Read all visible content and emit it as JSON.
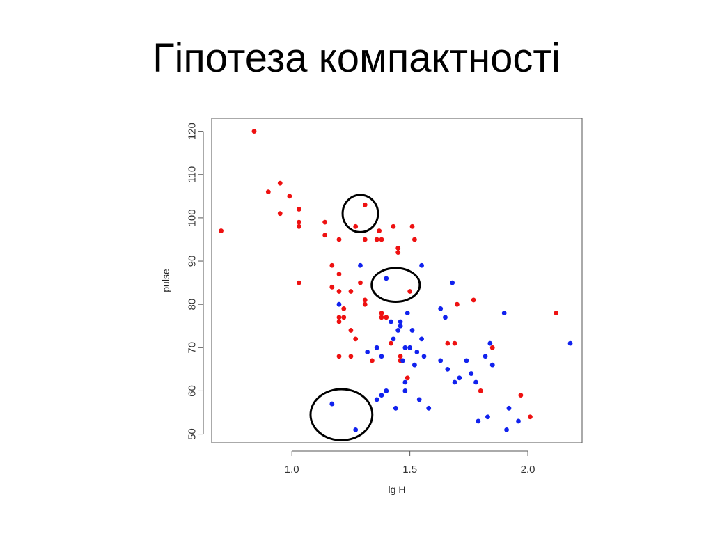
{
  "slide": {
    "title": "Гіпотеза компактності"
  },
  "chart_data": {
    "type": "scatter",
    "title": "",
    "xlabel": "lg H",
    "ylabel": "pulse",
    "xlim": [
      0.66,
      2.23
    ],
    "ylim": [
      48,
      123
    ],
    "xticks": [
      1.0,
      1.5,
      2.0
    ],
    "xtick_labels": [
      "1.0",
      "1.5",
      "2.0"
    ],
    "yticks": [
      50,
      60,
      70,
      80,
      90,
      100,
      110,
      120
    ],
    "ytick_labels": [
      "50",
      "60",
      "70",
      "80",
      "90",
      "100",
      "110",
      "120"
    ],
    "grid": false,
    "legend": null,
    "series": [
      {
        "color": "#ee1111",
        "points": [
          [
            0.84,
            120
          ],
          [
            0.7,
            97
          ],
          [
            0.9,
            106
          ],
          [
            0.95,
            108
          ],
          [
            0.95,
            101
          ],
          [
            0.99,
            105
          ],
          [
            1.03,
            102
          ],
          [
            1.03,
            99
          ],
          [
            1.03,
            98
          ],
          [
            1.03,
            85
          ],
          [
            1.14,
            99
          ],
          [
            1.14,
            96
          ],
          [
            1.17,
            89
          ],
          [
            1.17,
            84
          ],
          [
            1.2,
            95
          ],
          [
            1.2,
            87
          ],
          [
            1.2,
            83
          ],
          [
            1.2,
            77
          ],
          [
            1.2,
            76
          ],
          [
            1.2,
            68
          ],
          [
            1.22,
            79
          ],
          [
            1.22,
            77
          ],
          [
            1.25,
            83
          ],
          [
            1.25,
            74
          ],
          [
            1.25,
            68
          ],
          [
            1.27,
            98
          ],
          [
            1.27,
            72
          ],
          [
            1.29,
            85
          ],
          [
            1.31,
            103
          ],
          [
            1.31,
            95
          ],
          [
            1.31,
            81
          ],
          [
            1.31,
            80
          ],
          [
            1.34,
            67
          ],
          [
            1.36,
            95
          ],
          [
            1.37,
            97
          ],
          [
            1.38,
            95
          ],
          [
            1.38,
            78
          ],
          [
            1.38,
            77
          ],
          [
            1.4,
            77
          ],
          [
            1.42,
            71
          ],
          [
            1.43,
            98
          ],
          [
            1.45,
            93
          ],
          [
            1.45,
            92
          ],
          [
            1.46,
            68
          ],
          [
            1.46,
            67
          ],
          [
            1.49,
            63
          ],
          [
            1.5,
            83
          ],
          [
            1.51,
            98
          ],
          [
            1.52,
            95
          ],
          [
            1.66,
            71
          ],
          [
            1.69,
            71
          ],
          [
            1.7,
            80
          ],
          [
            1.77,
            81
          ],
          [
            1.8,
            60
          ],
          [
            1.85,
            70
          ],
          [
            1.97,
            59
          ],
          [
            2.01,
            54
          ],
          [
            2.12,
            78
          ]
        ]
      },
      {
        "color": "#1122ee",
        "points": [
          [
            1.17,
            57
          ],
          [
            1.2,
            80
          ],
          [
            1.27,
            51
          ],
          [
            1.29,
            89
          ],
          [
            1.32,
            69
          ],
          [
            1.36,
            70
          ],
          [
            1.36,
            58
          ],
          [
            1.38,
            68
          ],
          [
            1.38,
            59
          ],
          [
            1.4,
            86
          ],
          [
            1.4,
            60
          ],
          [
            1.42,
            76
          ],
          [
            1.43,
            72
          ],
          [
            1.44,
            56
          ],
          [
            1.45,
            74
          ],
          [
            1.46,
            76
          ],
          [
            1.46,
            75
          ],
          [
            1.47,
            67
          ],
          [
            1.48,
            70
          ],
          [
            1.48,
            62
          ],
          [
            1.48,
            60
          ],
          [
            1.49,
            78
          ],
          [
            1.5,
            70
          ],
          [
            1.51,
            74
          ],
          [
            1.52,
            66
          ],
          [
            1.53,
            69
          ],
          [
            1.54,
            58
          ],
          [
            1.55,
            89
          ],
          [
            1.55,
            72
          ],
          [
            1.56,
            68
          ],
          [
            1.58,
            56
          ],
          [
            1.63,
            67
          ],
          [
            1.63,
            79
          ],
          [
            1.65,
            77
          ],
          [
            1.66,
            65
          ],
          [
            1.68,
            85
          ],
          [
            1.69,
            62
          ],
          [
            1.71,
            63
          ],
          [
            1.74,
            67
          ],
          [
            1.76,
            64
          ],
          [
            1.78,
            62
          ],
          [
            1.79,
            53
          ],
          [
            1.82,
            68
          ],
          [
            1.83,
            54
          ],
          [
            1.84,
            71
          ],
          [
            1.85,
            66
          ],
          [
            1.9,
            78
          ],
          [
            1.91,
            51
          ],
          [
            1.92,
            56
          ],
          [
            1.96,
            53
          ],
          [
            2.18,
            71
          ]
        ]
      }
    ],
    "annotations": [
      {
        "shape": "ellipse",
        "cx": 1.29,
        "cy": 101,
        "rx": 0.075,
        "ry": 4.3
      },
      {
        "shape": "ellipse",
        "cx": 1.44,
        "cy": 84.5,
        "rx": 0.102,
        "ry": 3.9
      },
      {
        "shape": "ellipse",
        "cx": 1.21,
        "cy": 54.5,
        "rx": 0.131,
        "ry": 5.9
      }
    ],
    "annotation_color": "#000000"
  }
}
